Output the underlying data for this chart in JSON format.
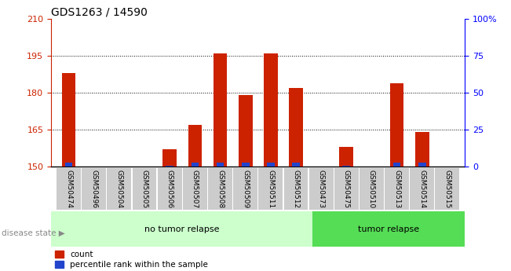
{
  "title": "GDS1263 / 14590",
  "samples": [
    "GSM50474",
    "GSM50496",
    "GSM50504",
    "GSM50505",
    "GSM50506",
    "GSM50507",
    "GSM50508",
    "GSM50509",
    "GSM50511",
    "GSM50512",
    "GSM50473",
    "GSM50475",
    "GSM50510",
    "GSM50513",
    "GSM50514",
    "GSM50515"
  ],
  "red_values": [
    188,
    150,
    150,
    150,
    157,
    167,
    196,
    179,
    196,
    182,
    150,
    158,
    150,
    184,
    164,
    150
  ],
  "blue_values": [
    151.8,
    150,
    150,
    150,
    150.5,
    151.5,
    151.5,
    151.5,
    151.5,
    151.5,
    150,
    150.5,
    150,
    151.5,
    151.5,
    150
  ],
  "ymin": 150,
  "ymax": 210,
  "yticks_left": [
    150,
    165,
    180,
    195,
    210
  ],
  "yticks_right": [
    0,
    25,
    50,
    75,
    100
  ],
  "right_tick_labels": [
    "0",
    "25",
    "50",
    "75",
    "100%"
  ],
  "group1_label": "no tumor relapse",
  "group2_label": "tumor relapse",
  "group1_count": 10,
  "group2_count": 6,
  "disease_state_label": "disease state",
  "legend_red": "count",
  "legend_blue": "percentile rank within the sample",
  "bar_color_red": "#cc2200",
  "bar_color_blue": "#2244cc",
  "group1_bg": "#ccffcc",
  "group2_bg": "#55dd55",
  "xlabel_bg": "#cccccc",
  "bar_width": 0.55,
  "title_fontsize": 10,
  "tick_fontsize": 8,
  "label_fontsize": 6.5,
  "group_fontsize": 8,
  "legend_fontsize": 7.5
}
